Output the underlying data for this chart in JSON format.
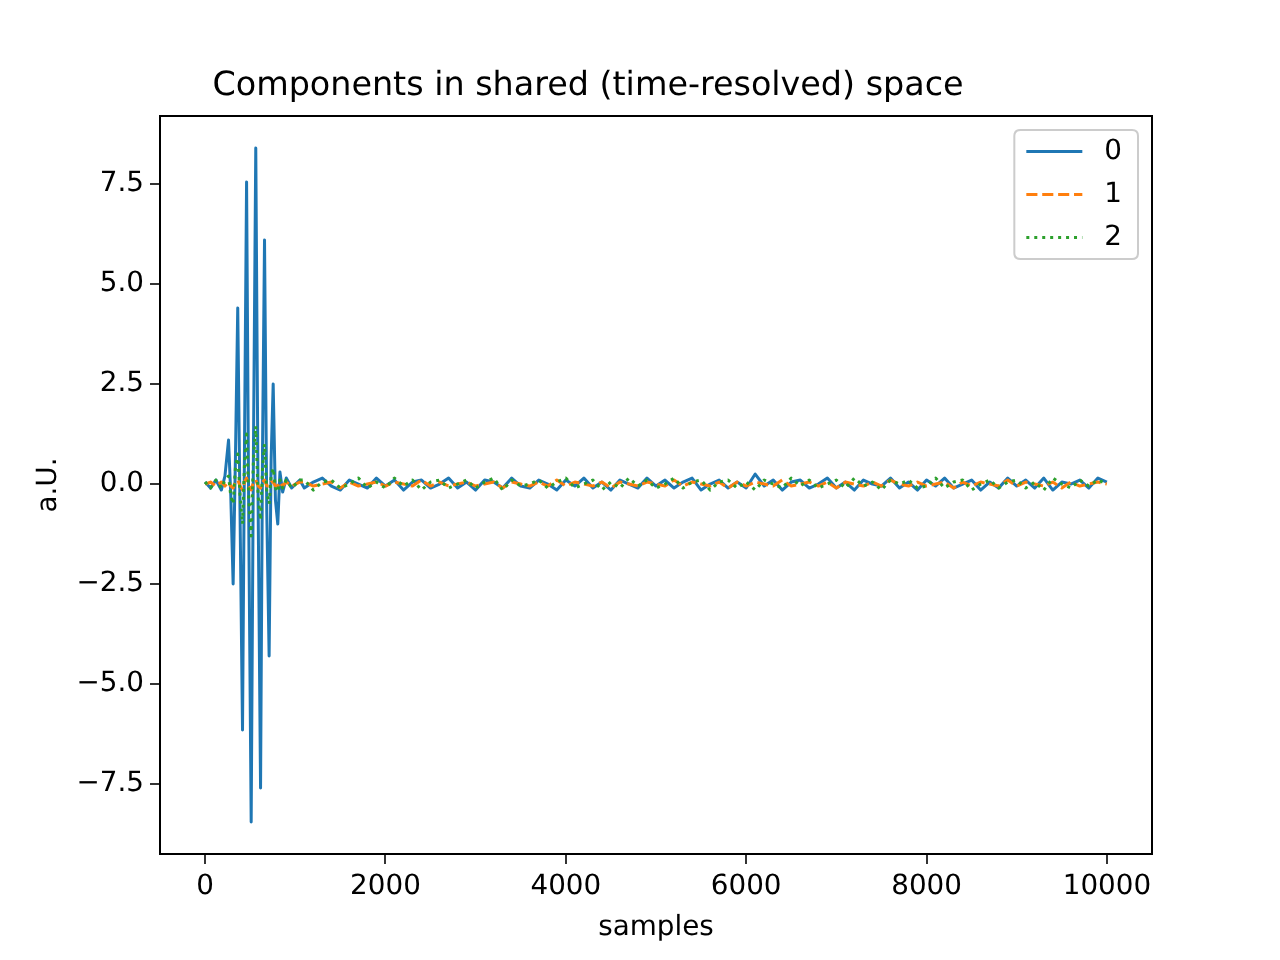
{
  "chart_data": {
    "type": "line",
    "title": "Components in shared (time-resolved) space",
    "xlabel": "samples",
    "ylabel": "a.U.",
    "x": [
      0,
      60,
      120,
      180,
      220,
      260,
      285,
      311,
      336,
      362,
      388,
      415,
      437,
      460,
      485,
      511,
      536,
      562,
      588,
      615,
      637,
      659,
      684,
      710,
      732,
      755,
      780,
      806,
      830,
      860,
      900,
      960,
      1050,
      1100,
      1200,
      1300,
      1400,
      1500,
      1600,
      1700,
      1800,
      1900,
      2000,
      2100,
      2200,
      2300,
      2400,
      2500,
      2600,
      2700,
      2800,
      2900,
      3000,
      3100,
      3200,
      3300,
      3400,
      3500,
      3600,
      3700,
      3800,
      3900,
      4000,
      4100,
      4200,
      4300,
      4400,
      4500,
      4600,
      4700,
      4800,
      4900,
      5000,
      5100,
      5200,
      5300,
      5400,
      5500,
      5600,
      5700,
      5800,
      5900,
      6000,
      6100,
      6200,
      6300,
      6400,
      6500,
      6600,
      6700,
      6800,
      6900,
      7000,
      7100,
      7200,
      7300,
      7400,
      7500,
      7600,
      7700,
      7800,
      7900,
      8000,
      8100,
      8200,
      8300,
      8400,
      8500,
      8600,
      8700,
      8800,
      8900,
      9000,
      9100,
      9200,
      9300,
      9400,
      9500,
      9600,
      9700,
      9800,
      9900,
      9999
    ],
    "series": [
      {
        "name": "0",
        "color": "#1f77b4",
        "line_style": "solid",
        "values": [
          0.05,
          -0.1,
          0.1,
          -0.15,
          0.2,
          1.1,
          -0.3,
          -2.5,
          0.6,
          4.4,
          -0.8,
          -6.15,
          1.0,
          7.55,
          -1.2,
          -8.45,
          0.8,
          8.4,
          -0.5,
          -7.6,
          0.9,
          6.1,
          -0.7,
          -4.3,
          0.6,
          2.5,
          -0.4,
          -1.0,
          0.3,
          -0.2,
          0.15,
          -0.1,
          0.1,
          -0.1,
          0.05,
          0.15,
          -0.05,
          -0.15,
          0.1,
          0.0,
          -0.1,
          0.15,
          -0.05,
          0.1,
          -0.15,
          0.05,
          0.1,
          -0.1,
          0.0,
          0.15,
          -0.1,
          0.05,
          -0.15,
          0.1,
          0.05,
          -0.1,
          0.15,
          -0.05,
          -0.1,
          0.1,
          0.0,
          -0.15,
          0.1,
          -0.05,
          0.15,
          -0.1,
          0.05,
          -0.15,
          0.1,
          0.0,
          -0.1,
          0.15,
          -0.05,
          0.1,
          -0.1,
          0.05,
          0.15,
          -0.15,
          0.0,
          0.1,
          -0.1,
          0.05,
          -0.1,
          0.25,
          -0.05,
          0.1,
          -0.15,
          0.05,
          0.1,
          -0.1,
          0.0,
          0.15,
          -0.1,
          0.05,
          -0.15,
          0.1,
          0.0,
          -0.05,
          0.15,
          -0.1,
          0.05,
          -0.15,
          0.1,
          -0.05,
          0.15,
          -0.1,
          0.0,
          0.1,
          -0.15,
          0.05,
          -0.1,
          0.15,
          -0.05,
          0.1,
          -0.1,
          0.15,
          -0.15,
          0.05,
          0.0,
          0.1,
          -0.1,
          0.15,
          0.05
        ]
      },
      {
        "name": "1",
        "color": "#ff7f0e",
        "line_style": "dashed",
        "values": [
          0.0,
          0.05,
          -0.05,
          0.05,
          -0.05,
          0.05,
          -0.05,
          -0.1,
          0.05,
          0.1,
          -0.05,
          -0.15,
          0.05,
          0.15,
          -0.05,
          -0.15,
          0.05,
          0.1,
          -0.05,
          -0.1,
          0.05,
          0.1,
          -0.05,
          -0.05,
          0.05,
          0.05,
          -0.05,
          -0.05,
          0.05,
          -0.05,
          0.05,
          -0.05,
          0.05,
          0.05,
          -0.05,
          0.0,
          0.05,
          -0.1,
          0.05,
          -0.05,
          0.0,
          0.05,
          -0.05,
          0.05,
          0.0,
          -0.05,
          0.1,
          -0.05,
          0.05,
          -0.05,
          0.0,
          0.05,
          -0.05,
          0.0,
          0.05,
          -0.1,
          0.05,
          0.0,
          -0.05,
          0.05,
          -0.05,
          0.1,
          -0.05,
          0.05,
          0.0,
          -0.05,
          0.05,
          -0.1,
          0.05,
          0.0,
          -0.05,
          0.05,
          0.0,
          -0.05,
          0.1,
          -0.05,
          0.05,
          0.0,
          -0.05,
          0.05,
          -0.1,
          0.05,
          -0.05,
          0.05,
          0.0,
          -0.05,
          0.1,
          -0.05,
          0.0,
          0.05,
          -0.05,
          0.05,
          -0.1,
          0.05,
          0.0,
          -0.05,
          0.05,
          -0.05,
          0.1,
          0.0,
          -0.05,
          0.05,
          -0.05,
          0.0,
          0.05,
          -0.1,
          0.05,
          -0.05,
          0.05,
          0.0,
          -0.05,
          0.1,
          -0.05,
          0.05,
          0.0,
          -0.05,
          0.05,
          -0.1,
          0.05,
          -0.05,
          0.0,
          0.05,
          0.0
        ]
      },
      {
        "name": "2",
        "color": "#2ca02c",
        "line_style": "dotted",
        "values": [
          0.05,
          -0.1,
          0.1,
          -0.1,
          0.1,
          0.2,
          -0.3,
          -0.5,
          0.4,
          0.75,
          -0.3,
          -1.0,
          0.5,
          1.25,
          -0.4,
          -1.3,
          0.6,
          1.45,
          -0.3,
          -0.9,
          0.4,
          1.0,
          -0.2,
          -0.5,
          0.2,
          0.4,
          -0.1,
          -0.2,
          0.1,
          -0.1,
          0.1,
          -0.1,
          0.1,
          0.1,
          -0.15,
          0.05,
          0.1,
          -0.1,
          0.0,
          0.15,
          -0.1,
          0.05,
          -0.1,
          0.15,
          -0.05,
          0.1,
          -0.15,
          0.05,
          0.1,
          -0.1,
          0.0,
          0.1,
          -0.1,
          0.05,
          0.15,
          -0.15,
          0.1,
          -0.05,
          0.0,
          0.1,
          -0.1,
          0.05,
          0.15,
          -0.1,
          0.0,
          0.1,
          -0.15,
          0.05,
          -0.1,
          0.15,
          -0.05,
          0.1,
          -0.1,
          0.0,
          0.15,
          -0.1,
          0.05,
          0.1,
          -0.15,
          0.05,
          0.1,
          -0.1,
          0.05,
          -0.15,
          0.1,
          0.0,
          -0.1,
          0.15,
          -0.05,
          0.1,
          -0.1,
          0.0,
          0.1,
          -0.1,
          0.15,
          -0.05,
          0.05,
          -0.15,
          0.1,
          0.0,
          0.1,
          -0.1,
          -0.05,
          0.15,
          -0.1,
          0.05,
          0.1,
          -0.15,
          0.0,
          0.1,
          -0.1,
          0.05,
          0.1,
          -0.1,
          0.05,
          -0.15,
          0.15,
          0.0,
          -0.1,
          0.1,
          -0.05,
          0.1,
          0.0
        ]
      }
    ],
    "xlim": [
      -500,
      10500
    ],
    "ylim": [
      -9.25,
      9.2
    ],
    "xticks": [
      0,
      2000,
      4000,
      6000,
      8000,
      10000
    ],
    "yticks": [
      {
        "value": -7.5,
        "label": "−7.5"
      },
      {
        "value": -5,
        "label": "−5.0"
      },
      {
        "value": -2.5,
        "label": "−2.5"
      },
      {
        "value": 0,
        "label": "0.0"
      },
      2.5,
      {
        "value": 5,
        "label": "5.0"
      },
      7.5
    ],
    "legend": "top right",
    "marker": "none",
    "grid": false
  }
}
